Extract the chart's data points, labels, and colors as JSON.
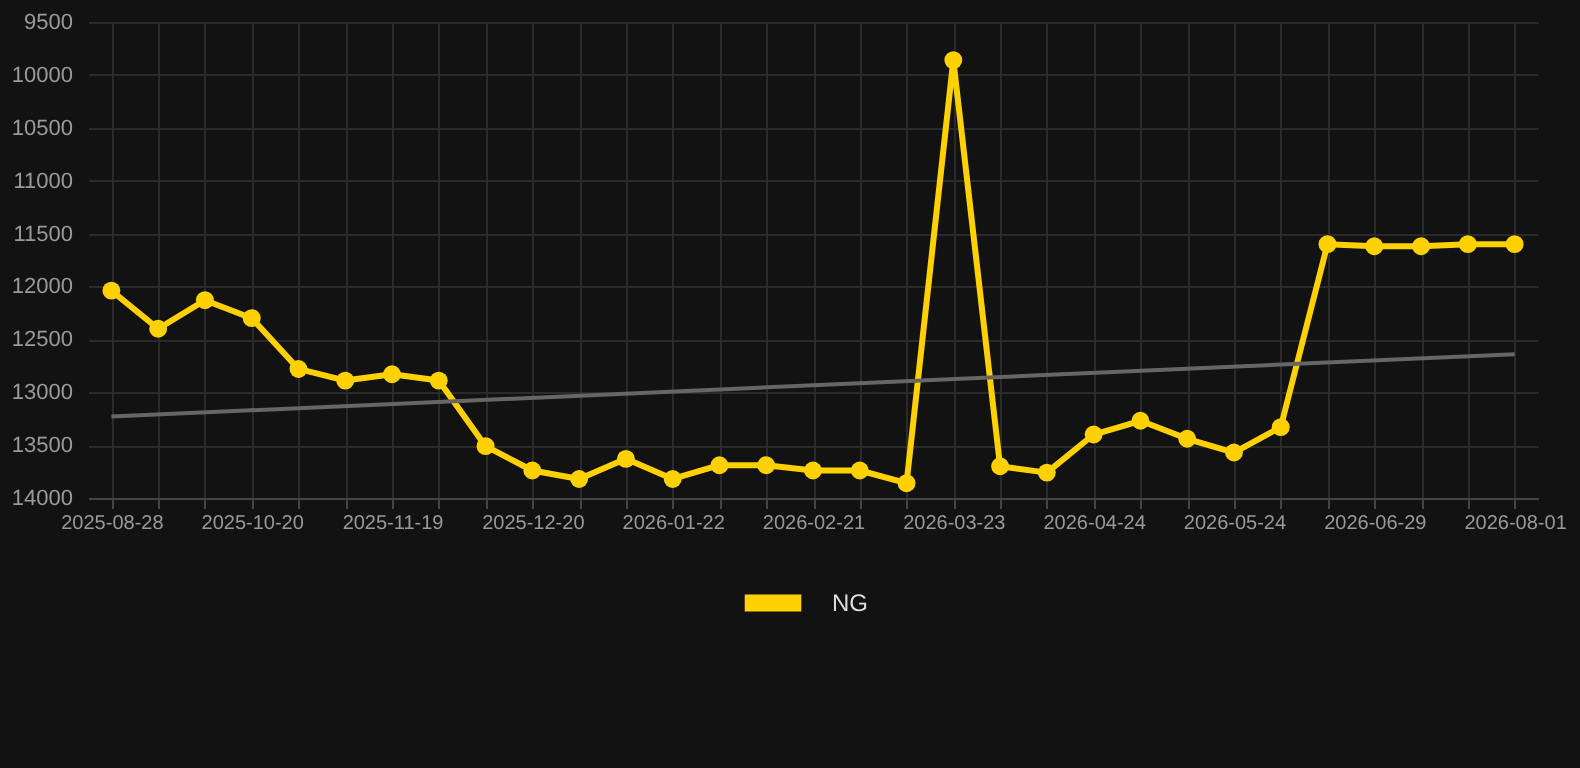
{
  "chart_data": {
    "type": "line",
    "categories": [
      "2025-08-28",
      null,
      null,
      "2025-10-20",
      null,
      null,
      "2025-11-19",
      null,
      null,
      "2025-12-20",
      null,
      null,
      "2026-01-22",
      null,
      null,
      "2026-02-21",
      null,
      null,
      "2026-03-23",
      null,
      null,
      "2026-04-24",
      null,
      null,
      "2026-05-24",
      null,
      null,
      "2026-06-29",
      null,
      null,
      "2026-08-01"
    ],
    "series": [
      {
        "name": "NG",
        "color": "#ffd100",
        "values": [
          12040,
          12400,
          12130,
          12300,
          12780,
          12890,
          12830,
          12890,
          13510,
          13740,
          13820,
          13630,
          13820,
          13690,
          13690,
          13740,
          13740,
          13860,
          9860,
          13700,
          13760,
          13400,
          13270,
          13440,
          13570,
          13330,
          11600,
          11620,
          11620,
          11600,
          11600
        ]
      },
      {
        "type": "line",
        "color": "#666666",
        "marker": "none",
        "values": [
          13230,
          null,
          null,
          null,
          null,
          null,
          null,
          null,
          null,
          null,
          null,
          null,
          null,
          null,
          null,
          null,
          null,
          null,
          null,
          null,
          null,
          null,
          null,
          null,
          null,
          null,
          null,
          null,
          null,
          null,
          12640
        ]
      }
    ],
    "ylim": [
      14000,
      9500
    ],
    "yticks": [
      9500,
      10000,
      10500,
      11000,
      11500,
      12000,
      12500,
      13000,
      13500,
      14000
    ],
    "grid": true,
    "legend": "bottom",
    "marker": "circle",
    "line_style": "solid"
  }
}
